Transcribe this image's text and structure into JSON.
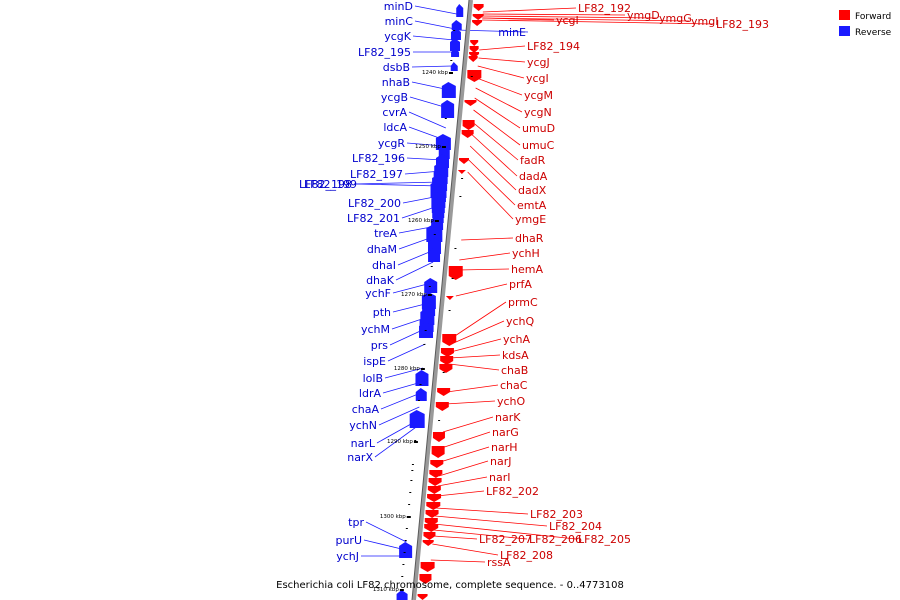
{
  "caption": "Escherichia coli LF82 chromosome, complete sequence. - 0..4773108",
  "legend": [
    {
      "label": "Forward",
      "color": "#ff0000"
    },
    {
      "label": "Reverse",
      "color": "#1a1aff"
    }
  ],
  "colors": {
    "forward": "#ff0000",
    "reverse": "#1a1aff",
    "forward_label": "#cc0000",
    "reverse_label": "#0000cc",
    "axis": "#888888"
  },
  "ticks": [
    {
      "label": "1240 kbp"
    },
    {
      "label": "1250 kbp"
    },
    {
      "label": "1260 kbp"
    },
    {
      "label": "1270 kbp"
    },
    {
      "label": "1280 kbp"
    },
    {
      "label": "1290 kbp"
    },
    {
      "label": "1300 kbp"
    },
    {
      "label": "1310 kbp"
    }
  ],
  "reverse_genes": [
    "minD",
    "minC",
    "ycgK",
    "LF82_195",
    "dsbB",
    "nhaB",
    "ycgB",
    "cvrA",
    "ldcA",
    "ycgR",
    "LF82_196",
    "LF82_197",
    "LF82_198",
    "LF82_199",
    "LF82_200",
    "LF82_201",
    "treA",
    "dhaM",
    "dhaI",
    "dhaK",
    "ychF",
    "pth",
    "ychM",
    "prs",
    "ispE",
    "lolB",
    "ldrA",
    "chaA",
    "ychN",
    "narL",
    "narX",
    "tpr",
    "purU",
    "ychJ",
    "minE"
  ],
  "forward_genes": [
    "LF82_192",
    "ymgD",
    "ymgG",
    "ymgI",
    "LF82_193",
    "ycgI",
    "LF82_194",
    "ycgJ",
    "ycgI",
    "ycgM",
    "ycgN",
    "umuD",
    "umuC",
    "fadR",
    "dadA",
    "dadX",
    "emtA",
    "ymgE",
    "dhaR",
    "ychH",
    "hemA",
    "prfA",
    "prmC",
    "ychQ",
    "ychA",
    "kdsA",
    "chaB",
    "chaC",
    "ychO",
    "narK",
    "narG",
    "narH",
    "narJ",
    "narI",
    "LF82_202",
    "LF82_203",
    "LF82_204",
    "LF82_205",
    "LF82_206",
    "LF82_207",
    "LF82_208",
    "rssA"
  ]
}
